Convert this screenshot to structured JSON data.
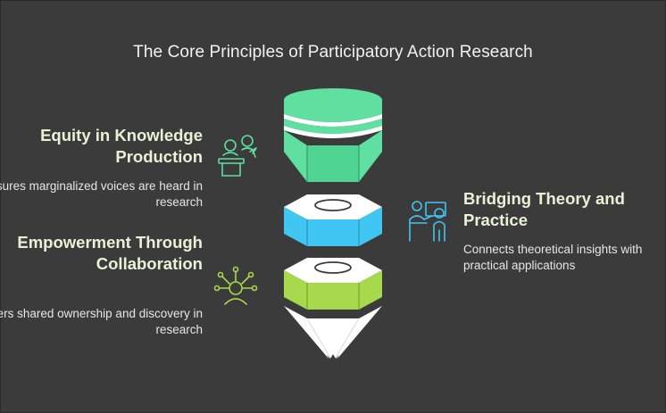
{
  "title": "The Core Principles of Participatory Action Research",
  "principles": [
    {
      "heading": "Equity in Knowledge Production",
      "description": "Ensures marginalized voices are heard in research",
      "icon": "presenter-podium-icon",
      "color": "#5fe0a0"
    },
    {
      "heading": "Bridging Theory and Practice",
      "description": "Connects theoretical insights with practical applications",
      "icon": "teacher-board-icon",
      "color": "#3fc6f2"
    },
    {
      "heading": "Empowerment Through Collaboration",
      "description": "Fosters shared ownership and discovery in research",
      "icon": "connected-person-icon",
      "color": "#a6d94b"
    }
  ]
}
